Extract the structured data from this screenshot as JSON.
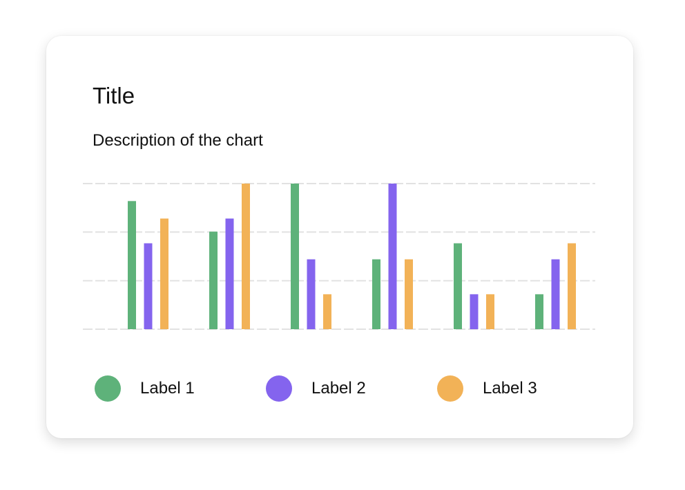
{
  "chart_data": {
    "type": "bar",
    "title": "Title",
    "subtitle": "Description of the chart",
    "xlabel": "",
    "ylabel": "",
    "categories": [
      "",
      "",
      "",
      "",
      "",
      ""
    ],
    "ylim": [
      0,
      100
    ],
    "grid": true,
    "gridlines": [
      0,
      33.3,
      66.7,
      100
    ],
    "legend_position": "bottom",
    "series": [
      {
        "name": "Label 1",
        "color": "#5eb27a",
        "values": [
          88,
          67,
          100,
          48,
          59,
          24
        ]
      },
      {
        "name": "Label 2",
        "color": "#8464ee",
        "values": [
          59,
          76,
          48,
          100,
          24,
          48
        ]
      },
      {
        "name": "Label 3",
        "color": "#f2b257",
        "values": [
          76,
          100,
          24,
          48,
          24,
          59
        ]
      }
    ]
  }
}
